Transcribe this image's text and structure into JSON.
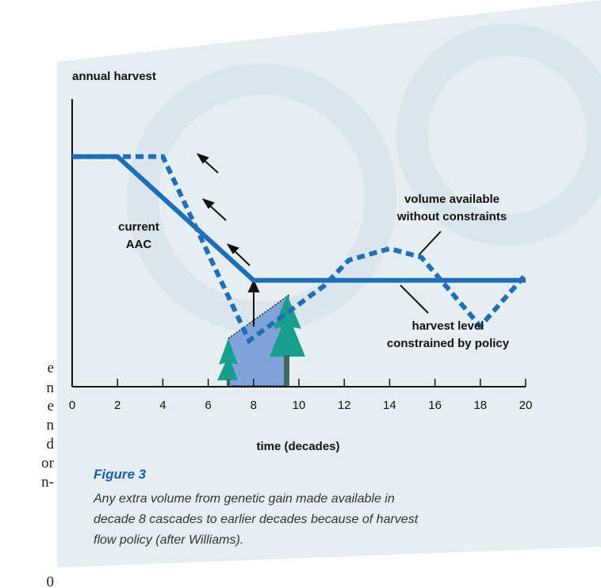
{
  "side_text": [
    "e",
    "n",
    "e",
    "n",
    "d",
    "or",
    "n-",
    "0"
  ],
  "chart_data": {
    "type": "line",
    "ylabel": "annual harvest",
    "xlabel": "time (decades)",
    "xlim": [
      0,
      20
    ],
    "ylim": [
      0,
      100
    ],
    "xticks": [
      0,
      2,
      4,
      6,
      8,
      10,
      12,
      14,
      16,
      18,
      20
    ],
    "series": [
      {
        "name": "harvest level constrained by policy",
        "color": "#1f6fb8",
        "style": "solid",
        "x": [
          0,
          2,
          8,
          20
        ],
        "values": [
          80,
          80,
          37,
          37
        ]
      },
      {
        "name": "volume available without constraints",
        "color": "#1f6fb8",
        "style": "dashed",
        "x": [
          0,
          4,
          7.8,
          11.1,
          12.2,
          14,
          15.4,
          18,
          20
        ],
        "values": [
          80,
          80,
          16,
          35,
          44,
          48,
          45,
          21,
          39
        ]
      }
    ],
    "annotations": [
      {
        "lines": [
          "current",
          "AAC"
        ]
      },
      {
        "lines": [
          "volume available",
          "without constraints"
        ]
      },
      {
        "lines": [
          "harvest level",
          "constrained by policy"
        ]
      }
    ],
    "figure_label": "Figure 3",
    "caption": [
      "Any extra volume from genetic gain made available in",
      "decade 8 cascades to earlier decades because of harvest",
      "flow policy (after Williams)."
    ]
  }
}
